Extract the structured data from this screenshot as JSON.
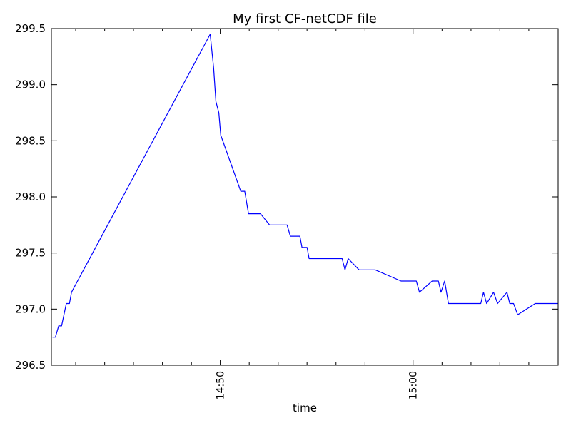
{
  "chart_data": {
    "type": "line",
    "title": "My   first CF-netCDF   file",
    "xlabel": "time",
    "ylabel": "",
    "x_unit": "minutes",
    "xlim": [
      14.736,
      15.028
    ],
    "ylim": [
      296.5,
      299.5
    ],
    "grid": false,
    "yticks": [
      {
        "value": 296.5,
        "label": "296.5"
      },
      {
        "value": 297.0,
        "label": "297.0"
      },
      {
        "value": 297.5,
        "label": "297.5"
      },
      {
        "value": 298.0,
        "label": "298.0"
      },
      {
        "value": 298.5,
        "label": "298.5"
      },
      {
        "value": 299.0,
        "label": "299.0"
      },
      {
        "value": 299.5,
        "label": "299.5"
      }
    ],
    "xticks_major": [
      {
        "value": 14.8333,
        "label": "14:50"
      },
      {
        "value": 14.9444,
        "label": "15:00"
      }
    ],
    "xticks_minor": [
      14.75,
      14.7667,
      14.7833,
      14.8,
      14.8167,
      14.85,
      14.8667,
      14.8833,
      14.9,
      14.9167,
      14.9611,
      14.9778,
      14.9944,
      15.0111
    ],
    "series": [
      {
        "name": "",
        "color": "#0000ff",
        "x": [
          14.7366,
          14.7383,
          14.7402,
          14.7419,
          14.7446,
          14.7464,
          14.7476,
          14.8275,
          14.8295,
          14.8308,
          14.8325,
          14.8336,
          14.8451,
          14.8474,
          14.8496,
          14.8565,
          14.8617,
          14.864,
          14.8656,
          14.8718,
          14.8737,
          14.8792,
          14.8804,
          14.8833,
          14.8845,
          14.8899,
          14.8916,
          14.8934,
          14.9035,
          14.9052,
          14.907,
          14.9133,
          14.915,
          14.9168,
          14.9186,
          14.9226,
          14.9375,
          14.9444,
          14.9463,
          14.9481,
          14.9554,
          14.957,
          14.959,
          14.9605,
          14.9626,
          14.9648,
          14.9801,
          14.9816,
          14.9834,
          14.985,
          14.9868,
          14.9908,
          14.9931,
          14.9985,
          15.0001,
          15.0023,
          15.0047,
          15.0148,
          15.0181,
          15.0228,
          15.0275,
          15.0286,
          15.0303,
          15.0412
        ],
        "values": [
          296.75,
          296.75,
          296.85,
          296.85,
          297.05,
          297.05,
          297.15,
          299.45,
          299.15,
          298.85,
          298.75,
          298.55,
          298.05,
          298.05,
          297.85,
          297.85,
          297.75,
          297.75,
          297.75,
          297.75,
          297.65,
          297.65,
          297.55,
          297.55,
          297.45,
          297.45,
          297.45,
          297.45,
          297.45,
          297.35,
          297.45,
          297.35,
          297.35,
          297.35,
          297.35,
          297.35,
          297.25,
          297.25,
          297.25,
          297.15,
          297.25,
          297.25,
          297.25,
          297.15,
          297.25,
          297.05,
          297.05,
          297.05,
          297.05,
          297.15,
          297.05,
          297.15,
          297.05,
          297.15,
          297.05,
          297.05,
          296.95,
          297.05,
          297.05,
          297.05,
          297.05,
          297.05,
          297.05,
          297.05
        ]
      }
    ]
  }
}
